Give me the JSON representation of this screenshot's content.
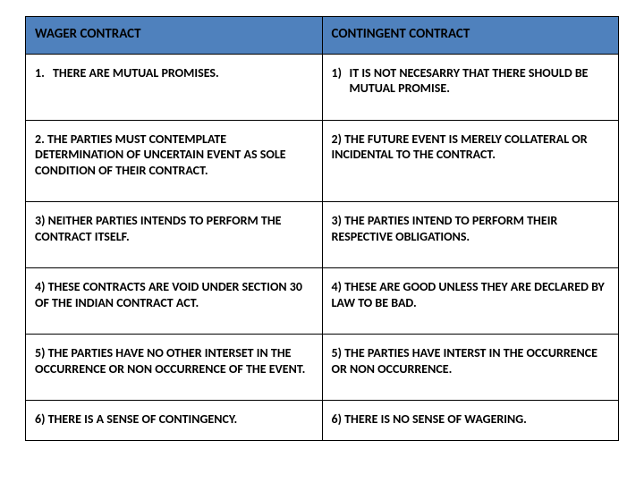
{
  "table": {
    "header_bg": "#4f81bd",
    "columns": [
      "WAGER CONTRACT",
      "CONTINGENT CONTRACT"
    ],
    "rows": [
      {
        "left_num": "1.",
        "left_txt": "THERE ARE MUTUAL PROMISES.",
        "right_num": "1)",
        "right_txt": "IT IS NOT NECESARRY THAT THERE SHOULD BE MUTUAL PROMISE."
      },
      {
        "left": "2. THE PARTIES MUST CONTEMPLATE DETERMINATION OF UNCERTAIN EVENT AS SOLE CONDITION OF THEIR CONTRACT.",
        "right": "2) THE FUTURE EVENT IS MERELY COLLATERAL  OR INCIDENTAL TO THE CONTRACT."
      },
      {
        "left": "3) NEITHER PARTIES INTENDS TO PERFORM THE CONTRACT ITSELF.",
        "right": "3) THE PARTIES INTEND TO PERFORM THEIR RESPECTIVE OBLIGATIONS."
      },
      {
        "left": "4) THESE CONTRACTS ARE VOID UNDER SECTION 30 OF THE INDIAN CONTRACT ACT.",
        "right": "4) THESE ARE GOOD UNLESS THEY ARE DECLARED BY LAW TO BE BAD."
      },
      {
        "left": "5) THE PARTIES HAVE NO OTHER INTERSET IN THE OCCURRENCE OR NON OCCURRENCE OF THE EVENT.",
        "right": "5) THE PARTIES HAVE INTERST IN THE OCCURRENCE OR NON OCCURRENCE."
      },
      {
        "left": "6) THERE IS A SENSE OF  CONTINGENCY.",
        "right": "6) THERE IS NO SENSE OF WAGERING."
      }
    ]
  }
}
